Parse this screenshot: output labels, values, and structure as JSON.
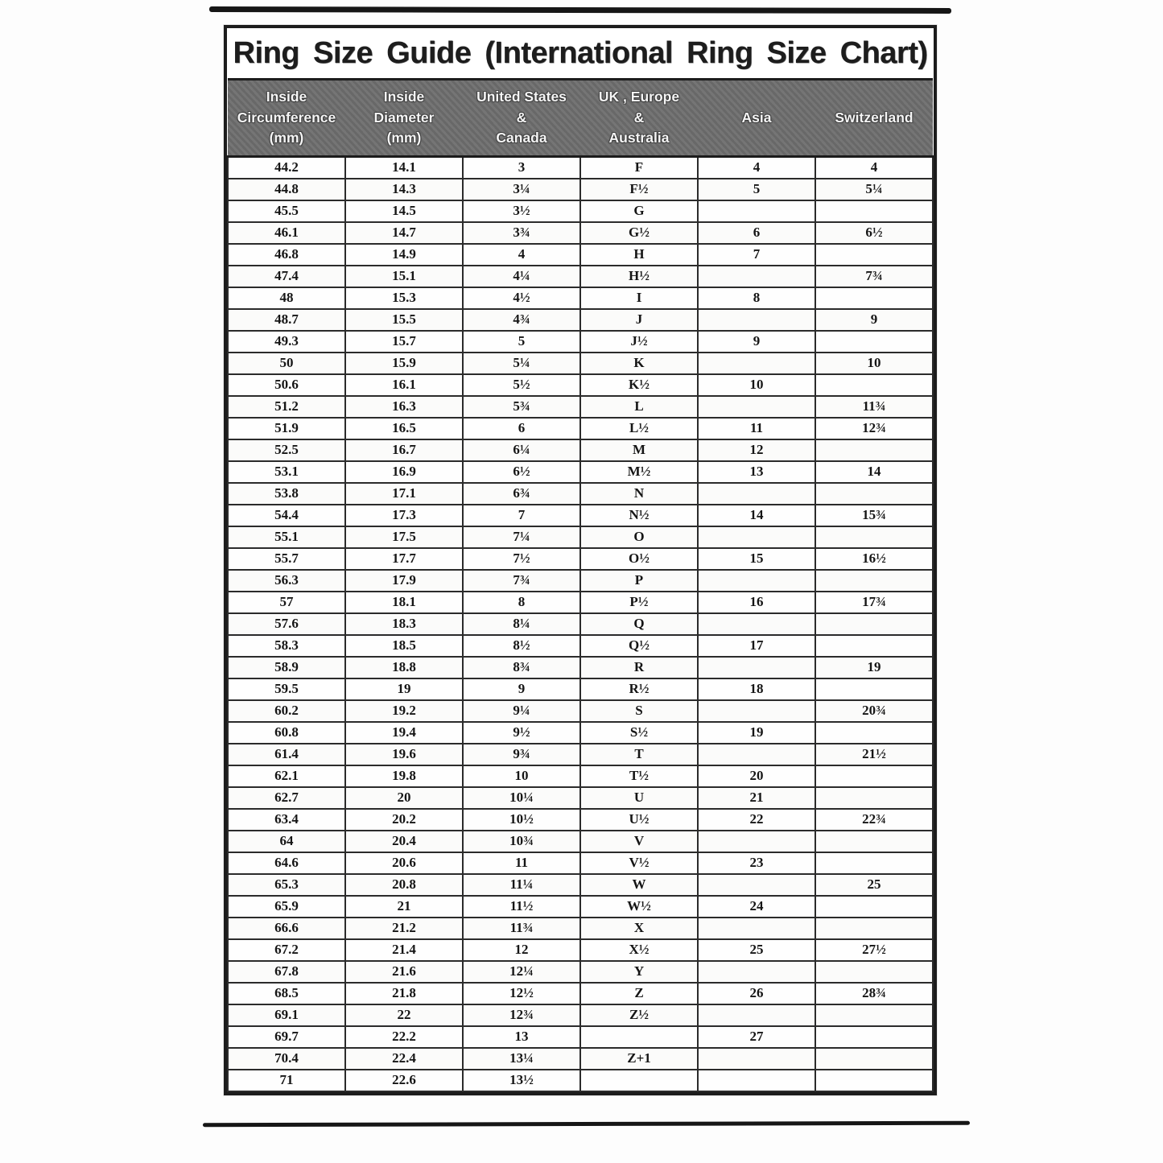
{
  "title": "Ring Size Guide (International Ring Size Chart)",
  "colors": {
    "header_bg": "#6e6e6e",
    "header_text": "#f5f5f5",
    "border": "#1c1c1c",
    "text": "#151515",
    "page_bg": "#fdfdfd"
  },
  "chart_data": {
    "type": "table",
    "title": "Ring Size Guide (International Ring Size Chart)",
    "header_lines": [
      [
        "Inside",
        "Circumference",
        "(mm)"
      ],
      [
        "Inside",
        "Diameter",
        "(mm)"
      ],
      [
        "United States",
        "&",
        "Canada"
      ],
      [
        "UK , Europe",
        "&",
        "Australia"
      ],
      [
        "Asia"
      ],
      [
        "Switzerland"
      ]
    ],
    "rows": [
      [
        "44.2",
        "14.1",
        "3",
        "F",
        "4",
        "4"
      ],
      [
        "44.8",
        "14.3",
        "3¼",
        "F½",
        "5",
        "5¼"
      ],
      [
        "45.5",
        "14.5",
        "3½",
        "G",
        "",
        ""
      ],
      [
        "46.1",
        "14.7",
        "3¾",
        "G½",
        "6",
        "6½"
      ],
      [
        "46.8",
        "14.9",
        "4",
        "H",
        "7",
        ""
      ],
      [
        "47.4",
        "15.1",
        "4¼",
        "H½",
        "",
        "7¾"
      ],
      [
        "48",
        "15.3",
        "4½",
        "I",
        "8",
        ""
      ],
      [
        "48.7",
        "15.5",
        "4¾",
        "J",
        "",
        "9"
      ],
      [
        "49.3",
        "15.7",
        "5",
        "J½",
        "9",
        ""
      ],
      [
        "50",
        "15.9",
        "5¼",
        "K",
        "",
        "10"
      ],
      [
        "50.6",
        "16.1",
        "5½",
        "K½",
        "10",
        ""
      ],
      [
        "51.2",
        "16.3",
        "5¾",
        "L",
        "",
        "11¾"
      ],
      [
        "51.9",
        "16.5",
        "6",
        "L½",
        "11",
        "12¾"
      ],
      [
        "52.5",
        "16.7",
        "6¼",
        "M",
        "12",
        ""
      ],
      [
        "53.1",
        "16.9",
        "6½",
        "M½",
        "13",
        "14"
      ],
      [
        "53.8",
        "17.1",
        "6¾",
        "N",
        "",
        ""
      ],
      [
        "54.4",
        "17.3",
        "7",
        "N½",
        "14",
        "15¾"
      ],
      [
        "55.1",
        "17.5",
        "7¼",
        "O",
        "",
        ""
      ],
      [
        "55.7",
        "17.7",
        "7½",
        "O½",
        "15",
        "16½"
      ],
      [
        "56.3",
        "17.9",
        "7¾",
        "P",
        "",
        ""
      ],
      [
        "57",
        "18.1",
        "8",
        "P½",
        "16",
        "17¾"
      ],
      [
        "57.6",
        "18.3",
        "8¼",
        "Q",
        "",
        ""
      ],
      [
        "58.3",
        "18.5",
        "8½",
        "Q½",
        "17",
        ""
      ],
      [
        "58.9",
        "18.8",
        "8¾",
        "R",
        "",
        "19"
      ],
      [
        "59.5",
        "19",
        "9",
        "R½",
        "18",
        ""
      ],
      [
        "60.2",
        "19.2",
        "9¼",
        "S",
        "",
        "20¾"
      ],
      [
        "60.8",
        "19.4",
        "9½",
        "S½",
        "19",
        ""
      ],
      [
        "61.4",
        "19.6",
        "9¾",
        "T",
        "",
        "21½"
      ],
      [
        "62.1",
        "19.8",
        "10",
        "T½",
        "20",
        ""
      ],
      [
        "62.7",
        "20",
        "10¼",
        "U",
        "21",
        ""
      ],
      [
        "63.4",
        "20.2",
        "10½",
        "U½",
        "22",
        "22¾"
      ],
      [
        "64",
        "20.4",
        "10¾",
        "V",
        "",
        ""
      ],
      [
        "64.6",
        "20.6",
        "11",
        "V½",
        "23",
        ""
      ],
      [
        "65.3",
        "20.8",
        "11¼",
        "W",
        "",
        "25"
      ],
      [
        "65.9",
        "21",
        "11½",
        "W½",
        "24",
        ""
      ],
      [
        "66.6",
        "21.2",
        "11¾",
        "X",
        "",
        ""
      ],
      [
        "67.2",
        "21.4",
        "12",
        "X½",
        "25",
        "27½"
      ],
      [
        "67.8",
        "21.6",
        "12¼",
        "Y",
        "",
        ""
      ],
      [
        "68.5",
        "21.8",
        "12½",
        "Z",
        "26",
        "28¾"
      ],
      [
        "69.1",
        "22",
        "12¾",
        "Z½",
        "",
        ""
      ],
      [
        "69.7",
        "22.2",
        "13",
        "",
        "27",
        ""
      ],
      [
        "70.4",
        "22.4",
        "13¼",
        "Z+1",
        "",
        ""
      ],
      [
        "71",
        "22.6",
        "13½",
        "",
        "",
        ""
      ]
    ]
  }
}
